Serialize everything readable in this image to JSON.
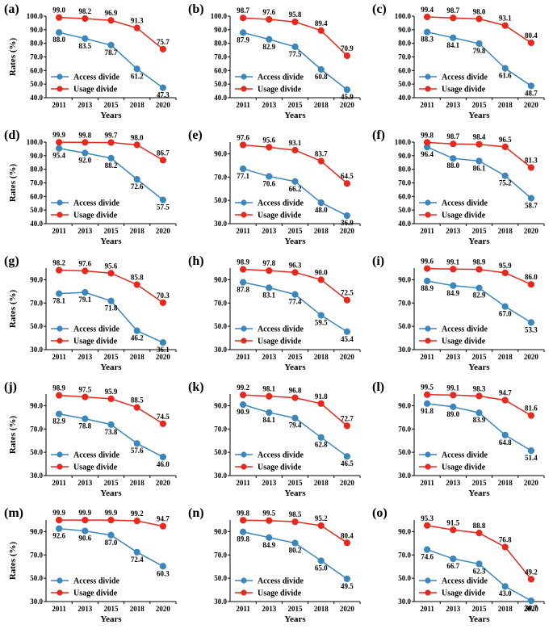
{
  "chart_data": [
    {
      "panel": "(a)",
      "type": "line",
      "categories": [
        "2011",
        "2013",
        "2015",
        "2018",
        "2020"
      ],
      "xlabel": "Years",
      "ylabel": "Rates (%)",
      "ylim": [
        40,
        100
      ],
      "yticks": [
        40,
        50,
        60,
        70,
        80,
        90,
        100
      ],
      "ytick_labels": [
        "40.0",
        "50.0",
        "60.0",
        "70.0",
        "80.0",
        "90.0",
        "100.0"
      ],
      "legend_position": "lower-left",
      "series": [
        {
          "name": "Access  divide",
          "color": "#3a87bd",
          "values": [
            88.0,
            83.5,
            78.7,
            61.2,
            47.3
          ],
          "labels": [
            "88.0",
            "83.5",
            "78.7",
            "61.2",
            "47.3"
          ]
        },
        {
          "name": "Usage divide",
          "color": "#e8271d",
          "values": [
            99.0,
            98.2,
            96.9,
            91.3,
            75.7
          ],
          "labels": [
            "99.0",
            "98.2",
            "96.9",
            "91.3",
            "75.7"
          ]
        }
      ]
    },
    {
      "panel": "(b)",
      "type": "line",
      "categories": [
        "2011",
        "2013",
        "2015",
        "2018",
        "2020"
      ],
      "xlabel": "Years",
      "ylabel": "",
      "ylim": [
        40,
        100
      ],
      "yticks": [
        40,
        50,
        60,
        70,
        80,
        90,
        100
      ],
      "ytick_labels": [
        "40.0",
        "50.0",
        "60.0",
        "70.0",
        "80.0",
        "90.0",
        "100.0"
      ],
      "legend_position": "lower-left",
      "series": [
        {
          "name": "Access  divide",
          "color": "#3a87bd",
          "values": [
            87.9,
            82.9,
            77.5,
            60.8,
            45.9
          ],
          "labels": [
            "87.9",
            "82.9",
            "77.5",
            "60.8",
            "45.9"
          ]
        },
        {
          "name": "Usage divide",
          "color": "#e8271d",
          "values": [
            98.7,
            97.6,
            95.8,
            89.4,
            70.9
          ],
          "labels": [
            "98.7",
            "97.6",
            "95.8",
            "89.4",
            "70.9"
          ]
        }
      ]
    },
    {
      "panel": "(c)",
      "type": "line",
      "categories": [
        "2011",
        "2013",
        "2015",
        "2018",
        "2020"
      ],
      "xlabel": "Years",
      "ylabel": "",
      "ylim": [
        40,
        100
      ],
      "yticks": [
        40,
        50,
        60,
        70,
        80,
        90,
        100
      ],
      "ytick_labels": [
        "40.0",
        "50.0",
        "60.0",
        "70.0",
        "80.0",
        "90.0",
        "100.0"
      ],
      "legend_position": "lower-left",
      "series": [
        {
          "name": "Access  divide",
          "color": "#3a87bd",
          "values": [
            88.3,
            84.1,
            79.8,
            61.6,
            48.7
          ],
          "labels": [
            "88.3",
            "84.1",
            "79.8",
            "61.6",
            "48.7"
          ]
        },
        {
          "name": "Usage divide",
          "color": "#e8271d",
          "values": [
            99.4,
            98.7,
            98.0,
            93.1,
            80.4
          ],
          "labels": [
            "99.4",
            "98.7",
            "98.0",
            "93.1",
            "80.4"
          ]
        }
      ]
    },
    {
      "panel": "(d)",
      "type": "line",
      "categories": [
        "2011",
        "2013",
        "2015",
        "2018",
        "2020"
      ],
      "xlabel": "Years",
      "ylabel": "Rates (%)",
      "ylim": [
        40,
        100
      ],
      "yticks": [
        40,
        50,
        60,
        70,
        80,
        90,
        100
      ],
      "ytick_labels": [
        "40.0",
        "50.0",
        "60.0",
        "70.0",
        "80.0",
        "90.0",
        "100.0"
      ],
      "legend_position": "lower-left",
      "series": [
        {
          "name": "Access  divide",
          "color": "#3a87bd",
          "values": [
            95.4,
            92.0,
            88.2,
            72.6,
            57.5
          ],
          "labels": [
            "95.4",
            "92.0",
            "88.2",
            "72.6",
            "57.5"
          ]
        },
        {
          "name": "Usage divide",
          "color": "#e8271d",
          "values": [
            99.9,
            99.8,
            99.7,
            98.0,
            86.7
          ],
          "labels": [
            "99.9",
            "99.8",
            "99.7",
            "98.0",
            "86.7"
          ]
        }
      ]
    },
    {
      "panel": "(e)",
      "type": "line",
      "categories": [
        "2011",
        "2013",
        "2015",
        "2018",
        "2020"
      ],
      "xlabel": "Years",
      "ylabel": "",
      "ylim": [
        30,
        100
      ],
      "yticks": [
        30,
        50,
        70,
        90
      ],
      "ytick_labels": [
        "30.0",
        "50.0",
        "70.0",
        "90.0"
      ],
      "legend_position": "lower-left",
      "series": [
        {
          "name": "Access  divide",
          "color": "#3a87bd",
          "values": [
            77.1,
            70.6,
            66.2,
            48.0,
            36.9
          ],
          "labels": [
            "77.1",
            "70.6",
            "66.2",
            "48.0",
            "36.9"
          ]
        },
        {
          "name": "Usage divide",
          "color": "#e8271d",
          "values": [
            97.6,
            95.6,
            93.1,
            83.7,
            64.5
          ],
          "labels": [
            "97.6",
            "95.6",
            "93.1",
            "83.7",
            "64.5"
          ]
        }
      ]
    },
    {
      "panel": "(f)",
      "type": "line",
      "categories": [
        "2011",
        "2013",
        "2015",
        "2018",
        "2020"
      ],
      "xlabel": "Years",
      "ylabel": "",
      "ylim": [
        40,
        100
      ],
      "yticks": [
        40,
        50,
        60,
        70,
        80,
        90,
        100
      ],
      "ytick_labels": [
        "40.0",
        "50.0",
        "60.0",
        "70.0",
        "80.0",
        "90.0",
        "100.0"
      ],
      "legend_position": "lower-left",
      "series": [
        {
          "name": "Access  divide",
          "color": "#3a87bd",
          "values": [
            96.4,
            88.0,
            86.1,
            75.2,
            58.7
          ],
          "labels": [
            "96.4",
            "88.0",
            "86.1",
            "75.2",
            "58.7"
          ]
        },
        {
          "name": "Usage divide",
          "color": "#e8271d",
          "values": [
            99.8,
            98.7,
            98.4,
            96.5,
            81.3
          ],
          "labels": [
            "99.8",
            "98.7",
            "98.4",
            "96.5",
            "81.3"
          ]
        }
      ]
    },
    {
      "panel": "(g)",
      "type": "line",
      "categories": [
        "2011",
        "2013",
        "2015",
        "2018",
        "2020"
      ],
      "xlabel": "Years",
      "ylabel": "Rates (%)",
      "ylim": [
        30,
        100
      ],
      "yticks": [
        30,
        50,
        70,
        90
      ],
      "ytick_labels": [
        "30.0",
        "50.0",
        "70.0",
        "90.0"
      ],
      "legend_position": "lower-left",
      "series": [
        {
          "name": "Access  divide",
          "color": "#3a87bd",
          "values": [
            78.1,
            79.1,
            71.8,
            46.2,
            36.1
          ],
          "labels": [
            "78.1",
            "79.1",
            "71.8",
            "46.2",
            "36.1"
          ]
        },
        {
          "name": "Usage divide",
          "color": "#e8271d",
          "values": [
            98.2,
            97.6,
            95.6,
            85.8,
            70.3
          ],
          "labels": [
            "98.2",
            "97.6",
            "95.6",
            "85.8",
            "70.3"
          ]
        }
      ]
    },
    {
      "panel": "(h)",
      "type": "line",
      "categories": [
        "2011",
        "2013",
        "2015",
        "2018",
        "2020"
      ],
      "xlabel": "Years",
      "ylabel": "",
      "ylim": [
        30,
        100
      ],
      "yticks": [
        30,
        50,
        70,
        90
      ],
      "ytick_labels": [
        "30.0",
        "50.0",
        "70.0",
        "90.0"
      ],
      "legend_position": "lower-left",
      "series": [
        {
          "name": "Access  divide",
          "color": "#3a87bd",
          "values": [
            87.8,
            83.1,
            77.4,
            59.5,
            45.4
          ],
          "labels": [
            "87.8",
            "83.1",
            "77.4",
            "59.5",
            "45.4"
          ]
        },
        {
          "name": "Usage divide",
          "color": "#e8271d",
          "values": [
            98.9,
            97.8,
            96.3,
            90.0,
            72.5
          ],
          "labels": [
            "98.9",
            "97.8",
            "96.3",
            "90.0",
            "72.5"
          ]
        }
      ]
    },
    {
      "panel": "(i)",
      "type": "line",
      "categories": [
        "2011",
        "2013",
        "2015",
        "2018",
        "2020"
      ],
      "xlabel": "Years",
      "ylabel": "",
      "ylim": [
        30,
        100
      ],
      "yticks": [
        30,
        50,
        70,
        90
      ],
      "ytick_labels": [
        "30.0",
        "50.0",
        "70.0",
        "90.0"
      ],
      "legend_position": "lower-left",
      "series": [
        {
          "name": "Access  divide",
          "color": "#3a87bd",
          "values": [
            88.9,
            84.9,
            82.9,
            67.0,
            53.3
          ],
          "labels": [
            "88.9",
            "84.9",
            "82.9",
            "67.0",
            "53.3"
          ]
        },
        {
          "name": "Usage divide",
          "color": "#e8271d",
          "values": [
            99.6,
            99.1,
            98.9,
            95.9,
            86.0
          ],
          "labels": [
            "99.6",
            "99.1",
            "98.9",
            "95.9",
            "86.0"
          ]
        }
      ]
    },
    {
      "panel": "(j)",
      "type": "line",
      "categories": [
        "2011",
        "2013",
        "2015",
        "2018",
        "2020"
      ],
      "xlabel": "Years",
      "ylabel": "Rates (%)",
      "ylim": [
        30,
        100
      ],
      "yticks": [
        30,
        50,
        70,
        90
      ],
      "ytick_labels": [
        "30.0",
        "50.0",
        "70.0",
        "90.0"
      ],
      "legend_position": "lower-left",
      "series": [
        {
          "name": "Access  divide",
          "color": "#3a87bd",
          "values": [
            82.9,
            78.8,
            73.8,
            57.6,
            46.0
          ],
          "labels": [
            "82.9",
            "78.8",
            "73.8",
            "57.6",
            "46.0"
          ]
        },
        {
          "name": "Usage divide",
          "color": "#e8271d",
          "values": [
            98.9,
            97.5,
            95.9,
            88.5,
            74.5
          ],
          "labels": [
            "98.9",
            "97.5",
            "95.9",
            "88.5",
            "74.5"
          ]
        }
      ]
    },
    {
      "panel": "(k)",
      "type": "line",
      "categories": [
        "2011",
        "2013",
        "2015",
        "2018",
        "2020"
      ],
      "xlabel": "Years",
      "ylabel": "",
      "ylim": [
        30,
        100
      ],
      "yticks": [
        30,
        50,
        70,
        90
      ],
      "ytick_labels": [
        "30.0",
        "50.0",
        "70.0",
        "90.0"
      ],
      "legend_position": "lower-left",
      "series": [
        {
          "name": "Access  divide",
          "color": "#3a87bd",
          "values": [
            90.9,
            84.1,
            79.4,
            62.8,
            46.5
          ],
          "labels": [
            "90.9",
            "84.1",
            "79.4",
            "62.8",
            "46.5"
          ]
        },
        {
          "name": "Usage divide",
          "color": "#e8271d",
          "values": [
            99.2,
            98.1,
            96.8,
            91.8,
            72.7
          ],
          "labels": [
            "99.2",
            "98.1",
            "96.8",
            "91.8",
            "72.7"
          ]
        }
      ]
    },
    {
      "panel": "(l)",
      "type": "line",
      "categories": [
        "2011",
        "2013",
        "2015",
        "2018",
        "2020"
      ],
      "xlabel": "Years",
      "ylabel": "",
      "ylim": [
        30,
        100
      ],
      "yticks": [
        30,
        50,
        70,
        90
      ],
      "ytick_labels": [
        "30.0",
        "50.0",
        "70.0",
        "90.0"
      ],
      "legend_position": "lower-left",
      "series": [
        {
          "name": "Access  divide",
          "color": "#3a87bd",
          "values": [
            91.8,
            89.0,
            83.9,
            64.8,
            51.4
          ],
          "labels": [
            "91.8",
            "89.0",
            "83.9",
            "64.8",
            "51.4"
          ]
        },
        {
          "name": "Usage divide",
          "color": "#e8271d",
          "values": [
            99.5,
            99.1,
            98.3,
            94.7,
            81.6
          ],
          "labels": [
            "99.5",
            "99.1",
            "98.3",
            "94.7",
            "81.6"
          ]
        }
      ]
    },
    {
      "panel": "(m)",
      "type": "line",
      "categories": [
        "2011",
        "2013",
        "2015",
        "2018",
        "2020"
      ],
      "xlabel": "Years",
      "ylabel": "Rates (%)",
      "ylim": [
        30,
        100
      ],
      "yticks": [
        30,
        50,
        70,
        90
      ],
      "ytick_labels": [
        "30.0",
        "50.0",
        "70.0",
        "90.0"
      ],
      "legend_position": "lower-left",
      "series": [
        {
          "name": "Access  divide",
          "color": "#3a87bd",
          "values": [
            92.6,
            90.6,
            87.0,
            72.4,
            60.3
          ],
          "labels": [
            "92.6",
            "90.6",
            "87.0",
            "72.4",
            "60.3"
          ]
        },
        {
          "name": "Usage divide",
          "color": "#e8271d",
          "values": [
            99.9,
            99.9,
            99.9,
            99.2,
            94.7
          ],
          "labels": [
            "99.9",
            "99.9",
            "99.9",
            "99.2",
            "94.7"
          ]
        }
      ]
    },
    {
      "panel": "(n)",
      "type": "line",
      "categories": [
        "2011",
        "2013",
        "2015",
        "2018",
        "2020"
      ],
      "xlabel": "Years",
      "ylabel": "",
      "ylim": [
        30,
        100
      ],
      "yticks": [
        30,
        50,
        70,
        90
      ],
      "ytick_labels": [
        "30.0",
        "50.0",
        "70.0",
        "90.0"
      ],
      "legend_position": "lower-left",
      "series": [
        {
          "name": "Access  divide",
          "color": "#3a87bd",
          "values": [
            89.8,
            84.9,
            80.2,
            65.0,
            49.5
          ],
          "labels": [
            "89.8",
            "84.9",
            "80.2",
            "65.0",
            "49.5"
          ]
        },
        {
          "name": "Usage divide",
          "color": "#e8271d",
          "values": [
            99.8,
            99.5,
            98.5,
            95.2,
            80.4
          ],
          "labels": [
            "99.8",
            "99.5",
            "98.5",
            "95.2",
            "80.4"
          ]
        }
      ]
    },
    {
      "panel": "(o)",
      "type": "line",
      "categories": [
        "2011",
        "2013",
        "2015",
        "2018",
        "2020"
      ],
      "xlabel": "Years",
      "ylabel": "",
      "ylim": [
        30,
        100
      ],
      "yticks": [
        30,
        50,
        70,
        90
      ],
      "ytick_labels": [
        "30.0",
        "50.0",
        "70.0",
        "90.0"
      ],
      "legend_position": "lower-left",
      "series": [
        {
          "name": "Access  divide",
          "color": "#3a87bd",
          "values": [
            74.6,
            66.7,
            62.3,
            43.0,
            30.7
          ],
          "labels": [
            "74.6",
            "66.7",
            "62.3",
            "43.0",
            "30.7"
          ]
        },
        {
          "name": "Usage divide",
          "color": "#e8271d",
          "values": [
            95.3,
            91.5,
            88.8,
            76.8,
            49.2
          ],
          "labels": [
            "95.3",
            "91.5",
            "88.8",
            "76.8",
            "49.2"
          ]
        }
      ]
    }
  ]
}
